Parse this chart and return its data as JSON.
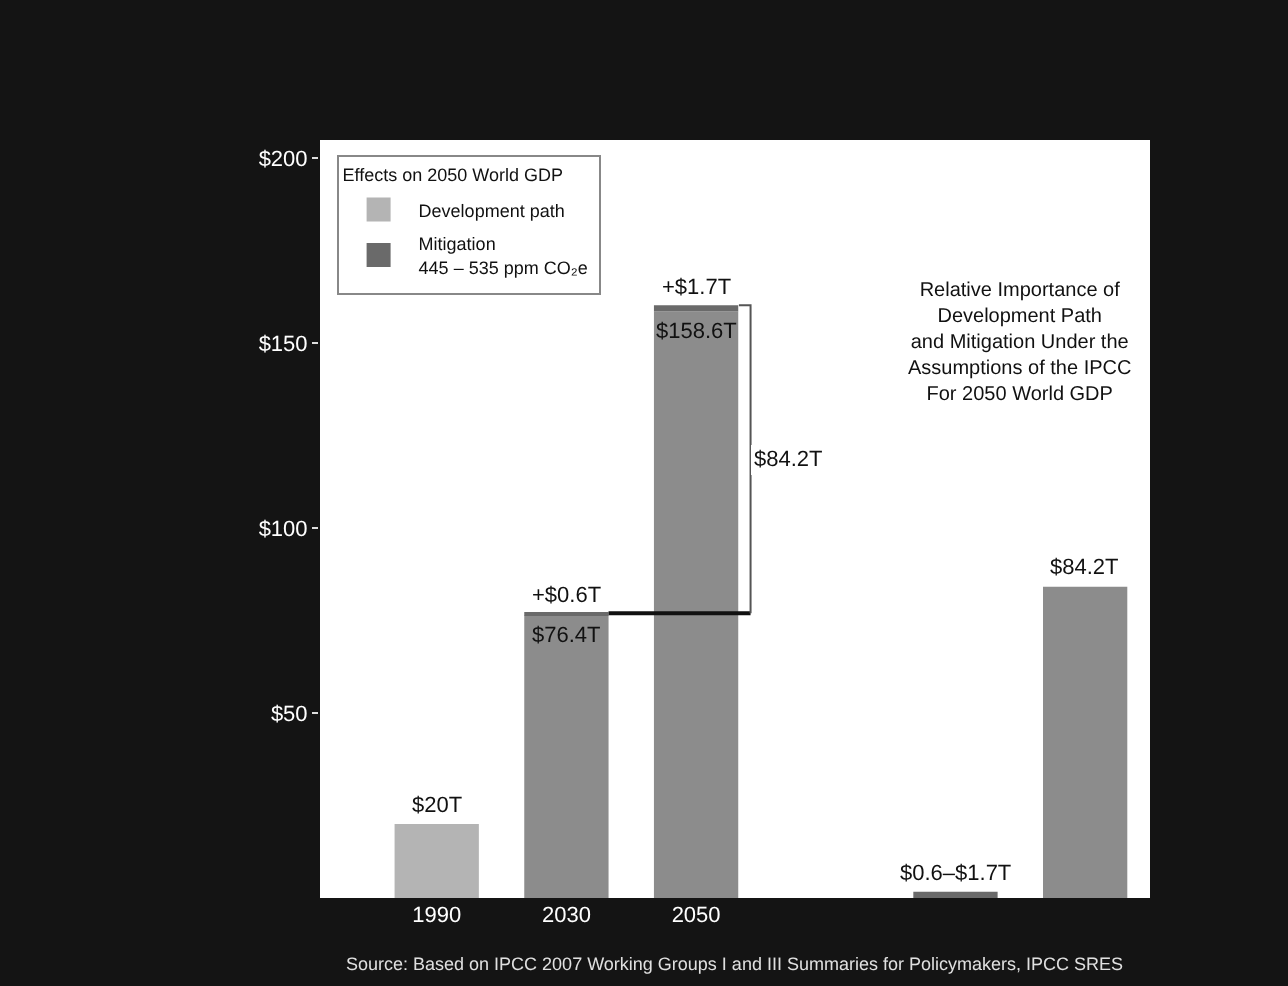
{
  "chart_data": {
    "type": "bar",
    "stacked": true,
    "categories": [
      "1990",
      "2030",
      "2050",
      null,
      null,
      null
    ],
    "series": [
      {
        "name": "Development path",
        "color": "#8c8c8c",
        "colors": [
          "#b4b4b4",
          "#8c8c8c",
          "#8c8c8c",
          "#8c8c8c",
          "#8c8c8c",
          "#8c8c8c"
        ],
        "values": [
          20,
          76.4,
          158.6,
          null,
          null,
          84.2
        ],
        "value_labels": [
          "$20T",
          "$76.4T",
          "$158.6T",
          null,
          null,
          "$84.2T"
        ]
      },
      {
        "name": "Mitigation\n445 – 535 ppm CO₂e",
        "color": "#6a6a6a",
        "values": [
          null,
          0.6,
          1.7,
          null,
          1.7,
          null
        ],
        "value_labels": [
          null,
          "+$0.6T",
          "+$1.7T",
          null,
          "$0.6–$1.7T",
          null
        ]
      }
    ],
    "ylim": [
      0,
      205
    ],
    "yticks": [
      {
        "value": 50,
        "label": "$50"
      },
      {
        "value": 100,
        "label": "$100"
      },
      {
        "value": 150,
        "label": "$150"
      },
      {
        "value": 200,
        "label": "$200"
      }
    ],
    "legend_title": "Effects on 2050 World GDP",
    "legend": "top left",
    "annotations": [
      "$84.2T",
      "Relative Importance of\nDevelopment Path\nand Mitigation Under the\nAssumptions of the IPCC\nFor 2050 World GDP",
      "Source: Based on IPCC 2007 Working Groups I and III Summaries for Policymakers, IPCC SRES"
    ]
  }
}
